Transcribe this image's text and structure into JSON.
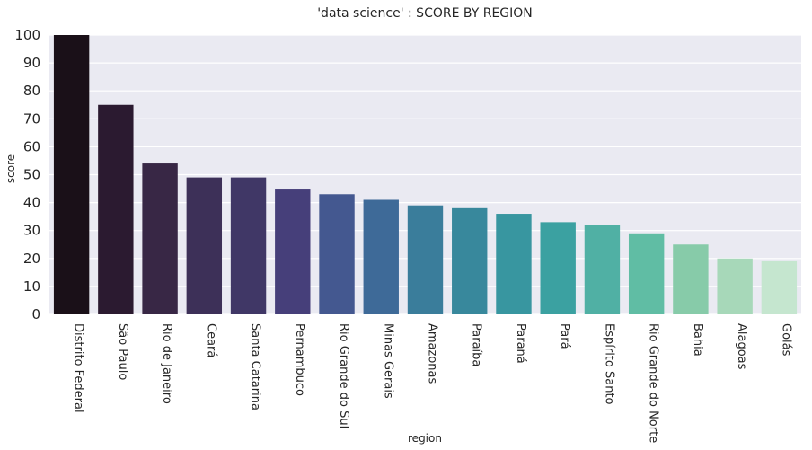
{
  "chart_data": {
    "type": "bar",
    "title": "'data science' : SCORE BY REGION",
    "xlabel": "region",
    "ylabel": "score",
    "ylim": [
      0,
      100
    ],
    "yticks": [
      0,
      10,
      20,
      30,
      40,
      50,
      60,
      70,
      80,
      90,
      100
    ],
    "grid": true,
    "categories": [
      "Distrito Federal",
      "São Paulo",
      "Rio de Janeiro",
      "Ceará",
      "Santa Catarina",
      "Pernambuco",
      "Rio Grande do Sul",
      "Minas Gerais",
      "Amazonas",
      "Paraíba",
      "Paraná",
      "Pará",
      "Espírito Santo",
      "Rio Grande do Norte",
      "Bahia",
      "Alagoas",
      "Goiás"
    ],
    "values": [
      100,
      75,
      54,
      49,
      49,
      45,
      43,
      41,
      39,
      38,
      36,
      33,
      32,
      29,
      25,
      20,
      19
    ],
    "colors": [
      "#1a1018",
      "#2b1a30",
      "#382745",
      "#3d3058",
      "#403766",
      "#463f7a",
      "#445890",
      "#3e6a98",
      "#3a7d9b",
      "#38889c",
      "#3896a0",
      "#3ba1a1",
      "#50b0a4",
      "#60bda4",
      "#87cba9",
      "#a7d8b9",
      "#c5e6cf"
    ]
  }
}
